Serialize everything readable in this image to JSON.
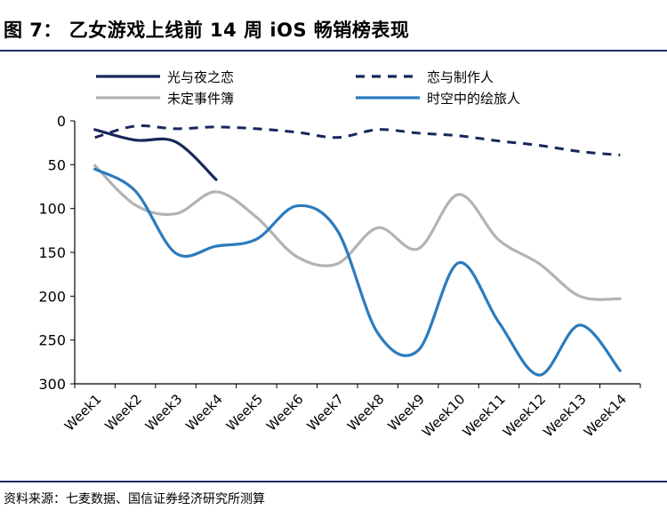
{
  "header": {
    "title": "图 7： 乙女游戏上线前 14 周 iOS 畅销榜表现"
  },
  "footer": {
    "source": "资料来源：七麦数据、国信证券经济研究所测算"
  },
  "chart_data": {
    "type": "line",
    "title": "图 7： 乙女游戏上线前 14 周 iOS 畅销榜表现",
    "xlabel": "",
    "ylabel": "",
    "y_inverted": true,
    "ylim": [
      0,
      300
    ],
    "yticks": [
      0,
      50,
      100,
      150,
      200,
      250,
      300
    ],
    "grid": false,
    "legend_position": "top",
    "categories": [
      "Week1",
      "Week2",
      "Week3",
      "Week4",
      "Week5",
      "Week6",
      "Week7",
      "Week8",
      "Week9",
      "Week10",
      "Week11",
      "Week12",
      "Week13",
      "Week14"
    ],
    "series": [
      {
        "name": "光与夜之恋",
        "color": "#16275b",
        "dash": "solid",
        "values": [
          10,
          22,
          24,
          67,
          null,
          null,
          null,
          null,
          null,
          null,
          null,
          null,
          null,
          null
        ]
      },
      {
        "name": "恋与制作人",
        "color": "#16275b",
        "dash": "dashed",
        "values": [
          19,
          6,
          9,
          7,
          9,
          13,
          19,
          10,
          14,
          17,
          23,
          28,
          35,
          39
        ]
      },
      {
        "name": "未定事件簿",
        "color": "#b3b3b3",
        "dash": "solid",
        "values": [
          51,
          96,
          106,
          81,
          110,
          155,
          163,
          122,
          146,
          84,
          136,
          163,
          200,
          203
        ]
      },
      {
        "name": "时空中的绘旅人",
        "color": "#2b7bbd",
        "dash": "solid",
        "values": [
          55,
          80,
          151,
          143,
          135,
          97,
          125,
          242,
          262,
          162,
          230,
          290,
          233,
          285
        ]
      }
    ]
  }
}
